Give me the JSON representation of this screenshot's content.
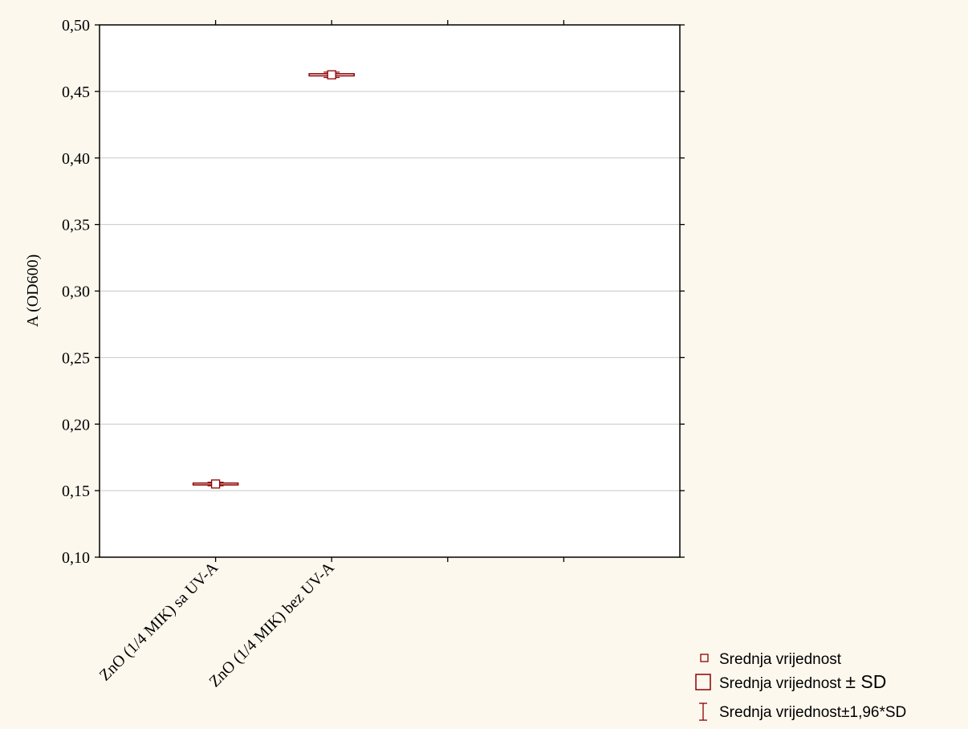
{
  "chart_data": {
    "type": "box",
    "categories": [
      "ZnO (1/4 MIK) sa UV-A",
      "ZnO (1/4 MIK) bez UV-A"
    ],
    "series": [
      {
        "mean": 0.155,
        "sd_low": 0.1543,
        "sd_high": 0.1557,
        "ci_low": 0.1537,
        "ci_high": 0.1563
      },
      {
        "mean": 0.4625,
        "sd_low": 0.4617,
        "sd_high": 0.4633,
        "ci_low": 0.4605,
        "ci_high": 0.4645
      }
    ],
    "ylabel": "A (OD600)",
    "ylim": [
      0.1,
      0.5
    ],
    "yticks": [
      "0,10",
      "0,15",
      "0,20",
      "0,25",
      "0,30",
      "0,35",
      "0,40",
      "0,45",
      "0,50"
    ],
    "grid": true,
    "legend_position": "bottom-right",
    "legend": [
      {
        "label": "Srednja vrijednost",
        "symbol": "small-square"
      },
      {
        "label_main": "Srednja vrijednost ",
        "label_suffix": "± SD",
        "symbol": "box"
      },
      {
        "label": "Srednja vrijednost±1,96*SD",
        "symbol": "whisker"
      }
    ],
    "colors": {
      "marker": "#8b0000",
      "grid": "#c8c8c8",
      "plot_bg": "#ffffff",
      "page_bg": "#fdf8ee"
    }
  }
}
